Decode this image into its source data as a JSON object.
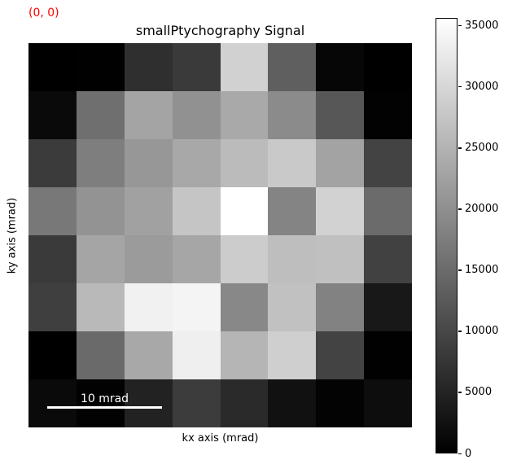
{
  "chart_data": {
    "type": "heatmap",
    "title": "smallPtychography Signal",
    "xlabel": "kx axis (mrad)",
    "ylabel": "ky axis (mrad)",
    "annotation": "(0, 0)",
    "annotation_color": "#ff0000",
    "scalebar": "10 mrad",
    "colormap": "gray",
    "rows": 8,
    "cols": 8,
    "vmin": 0,
    "vmax": 35650,
    "colorbar_ticks": [
      0,
      5000,
      10000,
      15000,
      20000,
      25000,
      30000,
      35000
    ],
    "values": [
      [
        0,
        140,
        6570,
        8110,
        29220,
        13280,
        840,
        0
      ],
      [
        1400,
        15520,
        22930,
        20270,
        23630,
        19430,
        12160,
        280
      ],
      [
        8250,
        17620,
        21110,
        23490,
        26140,
        28100,
        22790,
        9370
      ],
      [
        16780,
        20550,
        22510,
        27540,
        35650,
        18460,
        29360,
        14960
      ],
      [
        8110,
        23070,
        21670,
        23210,
        28520,
        26560,
        26840,
        9090
      ],
      [
        8810,
        25860,
        33690,
        34120,
        19020,
        26980,
        18180,
        3360
      ],
      [
        0,
        14820,
        23490,
        33410,
        25310,
        28940,
        9370,
        140
      ],
      [
        1400,
        280,
        4750,
        8390,
        5870,
        2380,
        420,
        1820
      ]
    ]
  }
}
